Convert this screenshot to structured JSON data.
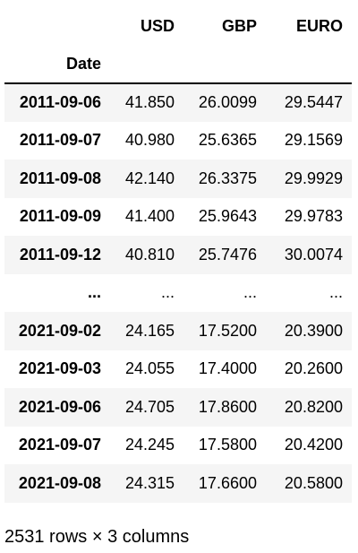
{
  "table": {
    "columns": [
      "USD",
      "GBP",
      "EURO"
    ],
    "index_name": "Date",
    "rows": [
      {
        "index": "2011-09-06",
        "values": [
          "41.850",
          "26.0099",
          "29.5447"
        ]
      },
      {
        "index": "2011-09-07",
        "values": [
          "40.980",
          "25.6365",
          "29.1569"
        ]
      },
      {
        "index": "2011-09-08",
        "values": [
          "42.140",
          "26.3375",
          "29.9929"
        ]
      },
      {
        "index": "2011-09-09",
        "values": [
          "41.400",
          "25.9643",
          "29.9783"
        ]
      },
      {
        "index": "2011-09-12",
        "values": [
          "40.810",
          "25.7476",
          "30.0074"
        ]
      },
      {
        "index": "...",
        "values": [
          "...",
          "...",
          "..."
        ]
      },
      {
        "index": "2021-09-02",
        "values": [
          "24.165",
          "17.5200",
          "20.3900"
        ]
      },
      {
        "index": "2021-09-03",
        "values": [
          "24.055",
          "17.4000",
          "20.2600"
        ]
      },
      {
        "index": "2021-09-06",
        "values": [
          "24.705",
          "17.8600",
          "20.8200"
        ]
      },
      {
        "index": "2021-09-07",
        "values": [
          "24.245",
          "17.5800",
          "20.4200"
        ]
      },
      {
        "index": "2021-09-08",
        "values": [
          "24.315",
          "17.6600",
          "20.5800"
        ]
      }
    ]
  },
  "shape_note": "2531 rows × 3 columns"
}
